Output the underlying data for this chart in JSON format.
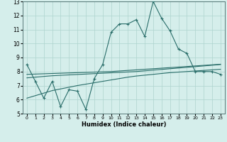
{
  "xlabel": "Humidex (Indice chaleur)",
  "x_values": [
    0,
    1,
    2,
    3,
    4,
    5,
    6,
    7,
    8,
    9,
    10,
    11,
    12,
    13,
    14,
    15,
    16,
    17,
    18,
    19,
    20,
    21,
    22,
    23
  ],
  "main_line": [
    8.5,
    7.3,
    6.1,
    7.3,
    5.5,
    6.7,
    6.6,
    5.3,
    7.5,
    8.5,
    10.8,
    11.4,
    11.4,
    11.7,
    10.5,
    13.0,
    11.8,
    10.9,
    9.6,
    9.3,
    8.0,
    8.0,
    8.0,
    7.8
  ],
  "trend1": [
    7.55,
    7.6,
    7.65,
    7.7,
    7.73,
    7.76,
    7.79,
    7.82,
    7.85,
    7.88,
    7.91,
    7.94,
    7.97,
    8.0,
    8.05,
    8.1,
    8.15,
    8.2,
    8.25,
    8.3,
    8.35,
    8.4,
    8.45,
    8.5
  ],
  "trend2": [
    6.1,
    6.28,
    6.46,
    6.64,
    6.76,
    6.88,
    7.0,
    7.1,
    7.2,
    7.3,
    7.4,
    7.5,
    7.6,
    7.68,
    7.74,
    7.8,
    7.86,
    7.92,
    7.96,
    8.0,
    8.04,
    8.08,
    8.12,
    8.16
  ],
  "trend3": [
    7.8,
    7.82,
    7.84,
    7.86,
    7.88,
    7.9,
    7.92,
    7.94,
    7.96,
    7.98,
    8.0,
    8.04,
    8.08,
    8.12,
    8.16,
    8.2,
    8.24,
    8.28,
    8.32,
    8.36,
    8.4,
    8.44,
    8.48,
    8.52
  ],
  "line_color": "#2a6e6a",
  "bg_color": "#d5eeeb",
  "grid_color": "#aed4ce",
  "ylim": [
    5,
    13
  ],
  "xlim": [
    -0.5,
    23.5
  ],
  "yticks": [
    5,
    6,
    7,
    8,
    9,
    10,
    11,
    12,
    13
  ],
  "xticks": [
    0,
    1,
    2,
    3,
    4,
    5,
    6,
    7,
    8,
    9,
    10,
    11,
    12,
    13,
    14,
    15,
    16,
    17,
    18,
    19,
    20,
    21,
    22,
    23
  ]
}
